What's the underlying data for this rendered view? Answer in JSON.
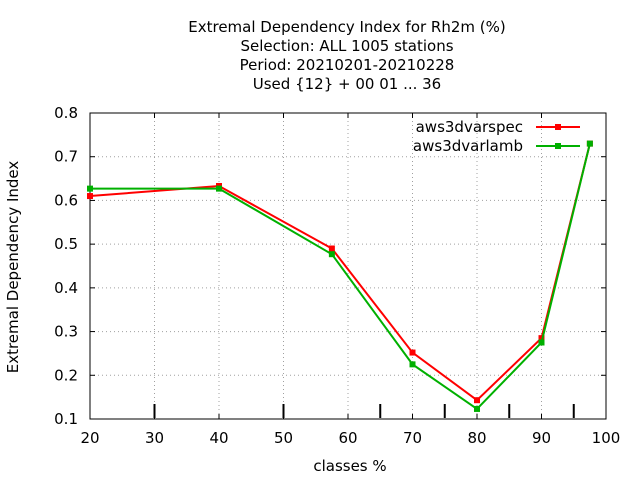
{
  "chart_data": {
    "type": "line",
    "title_lines": [
      "Extremal Dependency Index  for Rh2m (%)",
      "Selection: ALL   1005 stations",
      "Period: 20210201-20210228",
      "Used {12} + 00 01 ... 36"
    ],
    "xlabel": "classes %",
    "ylabel": "Extremal Dependency Index",
    "xlim": [
      20,
      100
    ],
    "ylim": [
      0.1,
      0.8
    ],
    "x_ticks": [
      20,
      30,
      40,
      50,
      60,
      70,
      80,
      90,
      100
    ],
    "x_tick_labels": [
      "20",
      "30",
      "40",
      "50",
      "60",
      "70",
      "80",
      "90",
      "100"
    ],
    "y_ticks": [
      0.1,
      0.2,
      0.3,
      0.4,
      0.5,
      0.6,
      0.7,
      0.8
    ],
    "y_tick_labels": [
      "0.1",
      "0.2",
      "0.3",
      "0.4",
      "0.5",
      "0.6",
      "0.7",
      "0.8"
    ],
    "minor_x_marks": [
      30,
      50,
      65,
      75,
      85,
      95
    ],
    "grid": true,
    "legend_position": "top-right",
    "series": [
      {
        "name": "aws3dvarspec",
        "color": "#ff0000",
        "x": [
          20,
          40,
          57.5,
          70,
          80,
          90,
          97.5
        ],
        "y": [
          0.61,
          0.633,
          0.49,
          0.252,
          0.143,
          0.285,
          0.73
        ]
      },
      {
        "name": "aws3dvarlamb",
        "color": "#00b000",
        "x": [
          20,
          40,
          57.5,
          70,
          80,
          90,
          97.5
        ],
        "y": [
          0.627,
          0.627,
          0.477,
          0.225,
          0.123,
          0.275,
          0.73
        ]
      }
    ]
  }
}
